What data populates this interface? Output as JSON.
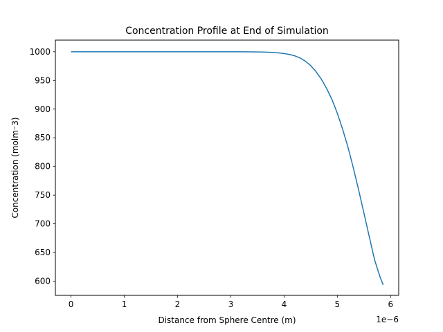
{
  "chart_data": {
    "type": "line",
    "title": "Concentration Profile at End of Simulation",
    "xlabel": "Distance from Sphere Centre (m)",
    "ylabel": "Concentration (molm⁻3)",
    "x_offset_label": "1e−6",
    "xlim": [
      -0.293,
      6.152
    ],
    "ylim": [
      575.3,
      1020.3
    ],
    "x_ticks": [
      0,
      1,
      2,
      3,
      4,
      5,
      6
    ],
    "y_ticks": [
      600,
      650,
      700,
      750,
      800,
      850,
      900,
      950,
      1000
    ],
    "grid": false,
    "line_color": "#1f77b4",
    "series": [
      {
        "x": [
          0,
          0.5,
          1,
          1.5,
          2,
          2.5,
          3,
          3.2,
          3.4,
          3.6,
          3.8,
          3.9,
          4.0,
          4.1,
          4.2,
          4.3,
          4.4,
          4.5,
          4.6,
          4.7,
          4.8,
          4.9,
          5.0,
          5.1,
          5.2,
          5.3,
          5.4,
          5.5,
          5.6,
          5.7,
          5.8,
          5.86
        ],
        "y": [
          1000,
          1000,
          1000,
          1000,
          1000,
          1000,
          1000,
          1000,
          999.8,
          999.5,
          998.8,
          998.0,
          997.0,
          995.3,
          993.0,
          989.2,
          983.6,
          975.9,
          965.4,
          952.2,
          935.9,
          916.6,
          892.8,
          864.8,
          833.5,
          797.7,
          759.0,
          718.4,
          677.4,
          637.0,
          607.9,
          593.5
        ]
      }
    ]
  }
}
